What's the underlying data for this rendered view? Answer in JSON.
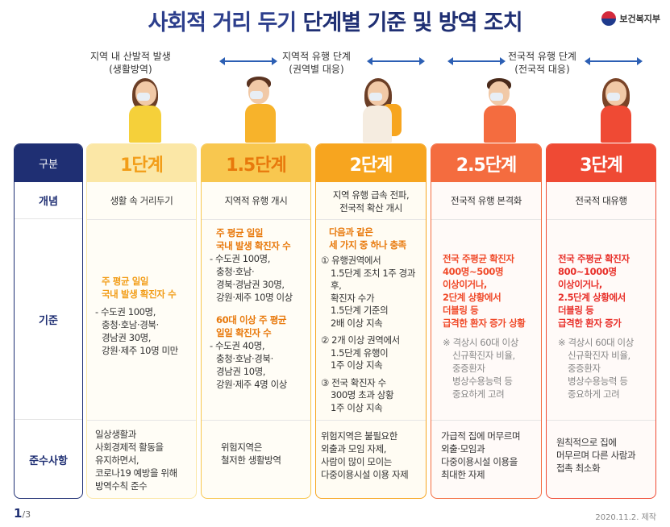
{
  "header": {
    "title_a": "사회적 거리 두기",
    "title_b": " 단계별 기준 및 방역 조치",
    "ministry": "보건복지부"
  },
  "phases": [
    {
      "line1": "지역 내 산발적 발생",
      "line2": "(생활방역)"
    },
    {
      "line1": "지역적 유행 단계",
      "line2": "(권역별 대응)"
    },
    {
      "line1": "전국적 유행 단계",
      "line2": "(전국적 대응)"
    }
  ],
  "labels": {
    "head": "구분",
    "concept": "개념",
    "criteria": "기준",
    "rules": "준수사항"
  },
  "levels": [
    {
      "name": "1단계",
      "concept": "생활 속 거리두기",
      "criteria": {
        "hl1": "주 평균 일일",
        "hl2": "국내 발생 확진자 수",
        "l1": "- 수도권 100명,",
        "l2": "충청·호남·경북·",
        "l3": "경남권 30명,",
        "l4": "강원·제주 10명 미만"
      },
      "rules": [
        "일상생활과",
        "사회경제적 활동을",
        "유지하면서,",
        "코로나19 예방을 위해",
        "방역수칙 준수"
      ]
    },
    {
      "name": "1.5단계",
      "concept": "지역적 유행 개시",
      "criteria": {
        "hl1": "주 평균 일일",
        "hl2": "국내 발생 확진자 수",
        "a1": "- 수도권 100명,",
        "a2": "충청·호남·",
        "a3": "경북·경남권 30명,",
        "a4": "강원·제주 10명 이상",
        "hl3": "60대 이상 주 평균",
        "hl4": "일일 확진자 수",
        "b1": "- 수도권 40명,",
        "b2": "충청·호남·경북·",
        "b3": "경남권 10명,",
        "b4": "강원·제주 4명 이상"
      },
      "rules": [
        "위험지역은",
        "철저한 생활방역"
      ]
    },
    {
      "name": "2단계",
      "concept": [
        "지역 유행 급속 전파,",
        "전국적 확산 개시"
      ],
      "criteria": {
        "hl1": "다음과 같은",
        "hl2": "세 가지 중 하나 충족",
        "c1": [
          "① 유행권역에서",
          "1.5단계 조치 1주 경과 후,",
          "확진자 수가",
          "1.5단계 기준의",
          "2배 이상 지속"
        ],
        "c2": [
          "② 2개 이상 권역에서",
          "1.5단계 유행이",
          "1주 이상 지속"
        ],
        "c3": [
          "③ 전국 확진자 수",
          "300명 초과 상황",
          "1주 이상 지속"
        ]
      },
      "rules": [
        "위험지역은 불필요한",
        "외출과 모임 자제,",
        "사람이 많이 모이는",
        "다중이용시설 이용 자제"
      ]
    },
    {
      "name": "2.5단계",
      "concept": "전국적 유행 본격화",
      "criteria": {
        "hl": [
          "전국 주평균 확진자",
          "400명~500명",
          "이상이거나,",
          "2단계 상황에서",
          "더블링 등",
          "급격한 환자 증가 상황"
        ],
        "note": [
          "※ 격상시 60대 이상",
          "신규확진자 비율,",
          "중증환자",
          "병상수용능력 등",
          "중요하게 고려"
        ]
      },
      "rules": [
        "가급적 집에 머무르며",
        "외출·모임과",
        "다중이용시설 이용을",
        "최대한 자제"
      ]
    },
    {
      "name": "3단계",
      "concept": "전국적 대유행",
      "criteria": {
        "hl": [
          "전국 주평균 확진자",
          "800~1000명",
          "이상이거나,",
          "2.5단계 상황에서",
          "더블링 등",
          "급격한 환자 증가"
        ],
        "note": [
          "※ 격상시 60대 이상",
          "신규확진자 비율,",
          "중증환자",
          "병상수용능력 등",
          "중요하게 고려"
        ]
      },
      "rules": [
        "원칙적으로 집에",
        "머무르며 다른 사람과",
        "접촉 최소화"
      ]
    }
  ],
  "colors": {
    "level1": "#fbe7a6",
    "level15": "#f8c74f",
    "level2": "#f7a51f",
    "level25": "#f46c3f",
    "level3": "#ef4a34",
    "navy": "#1f2f73"
  },
  "footer": {
    "page": "1",
    "total": "/3",
    "made": "2020.11.2. 제작"
  }
}
